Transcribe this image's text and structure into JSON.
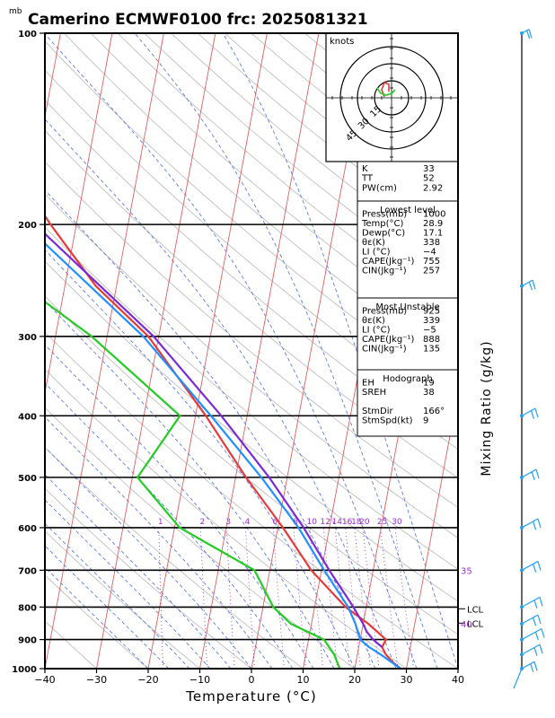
{
  "page": {
    "unit_label": "mb",
    "title": "Camerino ECMWF0100  frc: 2025081321"
  },
  "axes": {
    "xlabel": "Temperature (°C)",
    "mixing_ratio_label": "Mixing Ratio (g/kg)",
    "hodograph_label": "knots"
  },
  "chart_data": {
    "type": "line",
    "title": "Camerino ECMWF0100  frc: 2025081321",
    "xlabel": "Temperature (°C)",
    "ylabel": "",
    "x_ticks": [
      -40,
      -30,
      -20,
      -10,
      0,
      10,
      20,
      30,
      40
    ],
    "y_ticks": [
      100,
      200,
      300,
      400,
      500,
      600,
      700,
      800,
      900,
      1000
    ],
    "xlim": [
      -40,
      40
    ],
    "ylim": [
      1000,
      100
    ],
    "y_scale": "log",
    "skew": "skew-T",
    "series": [
      {
        "color": "#e8393a",
        "points": [
          [
            1000,
            28.9
          ],
          [
            975,
            27
          ],
          [
            950,
            25.5
          ],
          [
            925,
            24.5
          ],
          [
            900,
            25
          ],
          [
            850,
            21
          ],
          [
            800,
            16
          ],
          [
            700,
            8
          ],
          [
            600,
            1
          ],
          [
            500,
            -8
          ],
          [
            400,
            -18
          ],
          [
            300,
            -32
          ],
          [
            250,
            -44
          ],
          [
            200,
            -55
          ],
          [
            150,
            -68
          ],
          [
            100,
            -80
          ]
        ]
      },
      {
        "color": "#22cc22",
        "points": [
          [
            1000,
            17.1
          ],
          [
            950,
            15.5
          ],
          [
            900,
            13
          ],
          [
            850,
            6
          ],
          [
            800,
            2
          ],
          [
            700,
            -3
          ],
          [
            600,
            -19
          ],
          [
            500,
            -29
          ],
          [
            400,
            -23
          ],
          [
            300,
            -43
          ],
          [
            250,
            -58
          ],
          [
            200,
            -68
          ],
          [
            150,
            -80
          ],
          [
            100,
            -92
          ]
        ]
      },
      {
        "color": "#1e90ff",
        "points": [
          [
            1000,
            28.9
          ],
          [
            950,
            24.5
          ],
          [
            925,
            22
          ],
          [
            900,
            20
          ],
          [
            850,
            18.5
          ],
          [
            800,
            16.5
          ],
          [
            700,
            10.5
          ],
          [
            600,
            4
          ],
          [
            500,
            -5
          ],
          [
            400,
            -17
          ],
          [
            300,
            -33
          ],
          [
            200,
            -60
          ],
          [
            100,
            -88
          ]
        ]
      },
      {
        "color": "#7a2ad8",
        "points": [
          [
            925,
            24.5
          ],
          [
            900,
            22.5
          ],
          [
            875,
            21
          ],
          [
            850,
            20
          ],
          [
            800,
            17.5
          ],
          [
            700,
            11.5
          ],
          [
            600,
            5
          ],
          [
            500,
            -3.5
          ],
          [
            400,
            -15
          ],
          [
            300,
            -31
          ],
          [
            200,
            -58
          ],
          [
            100,
            -86
          ]
        ]
      }
    ],
    "mixing_ratio_labels": [
      "1",
      "2",
      "3",
      "4",
      "6",
      "8",
      "10",
      "12",
      "14",
      "16",
      "18",
      "20",
      "25",
      "30"
    ],
    "mixing_ratio_values": [
      1,
      2,
      3,
      4,
      6,
      8,
      10,
      12,
      14,
      16,
      18,
      20,
      25,
      30
    ],
    "right_side_labels": [
      {
        "text": "35",
        "p": 700
      },
      {
        "text": "LCL",
        "p": 805
      },
      {
        "text": "LCL",
        "p": 848
      },
      {
        "text": "40",
        "p": 850
      }
    ],
    "hodograph_rings": [
      "15",
      "30",
      "45"
    ],
    "indices": {
      "rows1": [
        [
          "K",
          "33"
        ],
        [
          "TT",
          "52"
        ],
        [
          "PW(cm)",
          "2.92"
        ]
      ],
      "lowest_title": "Lowest level",
      "rows2": [
        [
          "Press(mb)",
          "1000"
        ],
        [
          "Temp(°C)",
          "28.9"
        ],
        [
          "Dewp(°C)",
          "17.1"
        ],
        [
          "θε(K)",
          "338"
        ],
        [
          "LI (°C)",
          "−4"
        ],
        [
          "CAPE(Jkg⁻¹)",
          "755"
        ],
        [
          "CIN(Jkg⁻¹)",
          "257"
        ]
      ],
      "unstable_title": "Most Unstable",
      "rows3": [
        [
          "Press(mb)",
          "925"
        ],
        [
          "θε(K)",
          "339"
        ],
        [
          "LI (°C)",
          "−5"
        ],
        [
          "CAPE(Jkg⁻¹)",
          "888"
        ],
        [
          "CIN(Jkg⁻¹)",
          "135"
        ]
      ],
      "hodo_title": "Hodograph",
      "rows4": [
        [
          "EH",
          "19"
        ],
        [
          "SREH",
          "38"
        ],
        [
          "",
          ""
        ],
        [
          "StmDir",
          "166°"
        ],
        [
          "StmSpd(kt)",
          "9"
        ]
      ]
    },
    "wind_profile_pressures": [
      100,
      250,
      400,
      500,
      600,
      700,
      800,
      850,
      900,
      950,
      1000
    ]
  },
  "colors": {
    "temperature": "#e8393a",
    "dewpoint": "#22cc22",
    "parcel": "#1e90ff",
    "virtual": "#7a2ad8",
    "isotherm": "#e06060",
    "dry_adiabat": "#b8b8b8",
    "moist_adiabat": "#4a6fe0",
    "mixing_ratio": "#8a2be2",
    "wind": "#1ea0ff"
  }
}
